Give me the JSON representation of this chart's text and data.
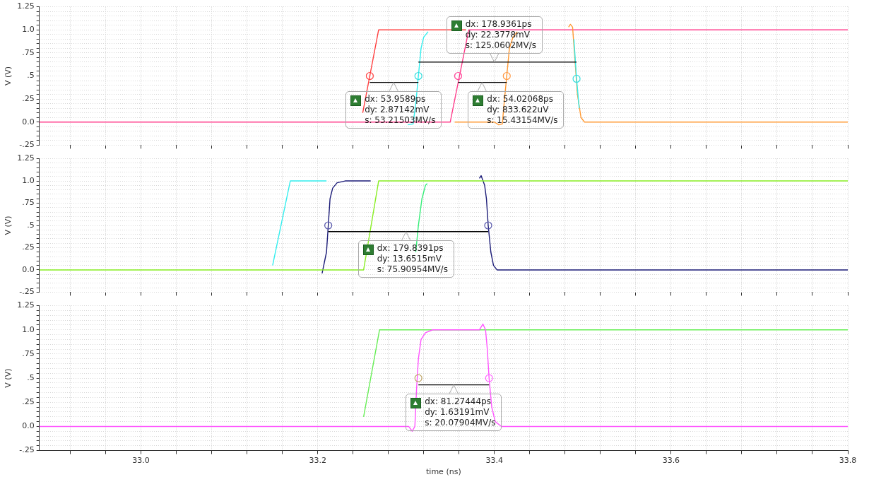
{
  "chart_data": [
    {
      "type": "line",
      "ylabel": "V (V)",
      "xlim": [
        32.885,
        33.8
      ],
      "ylim": [
        -0.25,
        1.25
      ],
      "tick_labels": "y",
      "grid": true,
      "xticks": [
        {
          "value": 32.92,
          "label": null
        },
        {
          "value": 32.96,
          "label": null
        },
        {
          "value": 33.0,
          "label": null
        },
        {
          "value": 33.04,
          "label": null
        },
        {
          "value": 33.08,
          "label": null
        },
        {
          "value": 33.12,
          "label": null
        },
        {
          "value": 33.16,
          "label": null
        },
        {
          "value": 33.2,
          "label": null
        },
        {
          "value": 33.24,
          "label": null
        },
        {
          "value": 33.28,
          "label": null
        },
        {
          "value": 33.32,
          "label": null
        },
        {
          "value": 33.36,
          "label": null
        },
        {
          "value": 33.4,
          "label": null
        },
        {
          "value": 33.44,
          "label": null
        },
        {
          "value": 33.48,
          "label": null
        },
        {
          "value": 33.52,
          "label": null
        },
        {
          "value": 33.56,
          "label": null
        },
        {
          "value": 33.6,
          "label": null
        },
        {
          "value": 33.64,
          "label": null
        },
        {
          "value": 33.68,
          "label": null
        },
        {
          "value": 33.72,
          "label": null
        },
        {
          "value": 33.76,
          "label": null
        },
        {
          "value": 33.8,
          "label": null
        }
      ],
      "yticks": [
        {
          "value": -0.25,
          "label": "-.25"
        },
        {
          "value": -0.2,
          "label": null
        },
        {
          "value": -0.15,
          "label": null
        },
        {
          "value": -0.1,
          "label": null
        },
        {
          "value": -0.05,
          "label": null
        },
        {
          "value": 0,
          "label": "0.0"
        },
        {
          "value": 0.05,
          "label": null
        },
        {
          "value": 0.1,
          "label": null
        },
        {
          "value": 0.15,
          "label": null
        },
        {
          "value": 0.2,
          "label": null
        },
        {
          "value": 0.25,
          "label": ".25"
        },
        {
          "value": 0.3,
          "label": null
        },
        {
          "value": 0.35,
          "label": null
        },
        {
          "value": 0.4,
          "label": null
        },
        {
          "value": 0.45,
          "label": null
        },
        {
          "value": 0.5,
          "label": ".5"
        },
        {
          "value": 0.55,
          "label": null
        },
        {
          "value": 0.6,
          "label": null
        },
        {
          "value": 0.65,
          "label": null
        },
        {
          "value": 0.7,
          "label": null
        },
        {
          "value": 0.75,
          "label": ".75"
        },
        {
          "value": 0.8,
          "label": null
        },
        {
          "value": 0.85,
          "label": null
        },
        {
          "value": 0.9,
          "label": null
        },
        {
          "value": 0.95,
          "label": null
        },
        {
          "value": 1,
          "label": "1.0"
        },
        {
          "value": 1.05,
          "label": null
        },
        {
          "value": 1.1,
          "label": null
        },
        {
          "value": 1.15,
          "label": null
        },
        {
          "value": 1.2,
          "label": null
        },
        {
          "value": 1.25,
          "label": "1.25"
        }
      ],
      "series": [
        {
          "type": "line",
          "color": "#ff4040",
          "x": [
            33.251,
            33.269,
            33.368
          ],
          "values": [
            0.1,
            1,
            1
          ]
        },
        {
          "type": "line",
          "color": "#ff3d8b",
          "x": [
            32.885,
            33.35,
            33.371,
            33.8
          ],
          "values": [
            0,
            0,
            1,
            1
          ]
        },
        {
          "type": "line",
          "color": "#ff9933",
          "x": [
            33.355,
            33.4,
            33.405,
            33.409,
            33.411,
            33.414,
            33.417,
            33.421,
            33.426,
            33.45,
            33.484,
            33.486,
            33.4885,
            33.491,
            33.494,
            33.498,
            33.502,
            33.8
          ],
          "values": [
            0,
            0,
            -0.03,
            -0.02,
            0.2,
            0.5,
            0.8,
            0.92,
            0.98,
            null,
            1.03,
            1.06,
            1.03,
            0.7,
            0.3,
            0.05,
            0,
            0
          ]
        },
        {
          "type": "line",
          "color": "#33eeee",
          "x": [
            33.302,
            33.308,
            33.311,
            33.314,
            33.317,
            33.32,
            33.325,
            33.4,
            33.49,
            33.493,
            33.496
          ],
          "values": [
            -0.03,
            -0.02,
            0.2,
            0.5,
            0.8,
            0.92,
            0.98,
            null,
            0.9,
            0.47,
            0.15
          ]
        },
        {
          "type": "line",
          "color": "#000000",
          "x": [
            33.259,
            33.314
          ],
          "values": [
            0.43,
            0.43
          ]
        },
        {
          "type": "line",
          "color": "#000000",
          "x": [
            33.359,
            33.414
          ],
          "values": [
            0.43,
            0.43
          ]
        },
        {
          "type": "line",
          "color": "#000000",
          "x": [
            33.314,
            33.493
          ],
          "values": [
            0.65,
            0.65
          ]
        },
        {
          "type": "scatter",
          "marker": "circle",
          "colors": [
            "#ff4444",
            "#33dddd",
            "#ff4499",
            "#ff9944",
            "#33dddd"
          ],
          "x": [
            33.259,
            33.314,
            33.359,
            33.414,
            33.493
          ],
          "values": [
            0.5,
            0.5,
            0.5,
            0.5,
            0.47
          ]
        }
      ],
      "annotations": [
        {
          "text": "dx: 53.9589ps\ndy: 2.87142mV\ns: 53.21503MV/s",
          "x": 33.286,
          "y": 0.43
        },
        {
          "text": "dx: 54.02068ps\ndy: 833.622uV\ns: 15.43154MV/s",
          "x": 33.386,
          "y": 0.43
        },
        {
          "text": "dx: 178.9361ps\ndy: 22.3778mV\ns: 125.0602MV/s",
          "x": 33.4,
          "y": 0.65
        }
      ]
    },
    {
      "type": "line",
      "ylabel": "V (V)",
      "xlim": [
        32.885,
        33.8
      ],
      "ylim": [
        -0.25,
        1.25
      ],
      "tick_labels": "y",
      "grid": true,
      "xticks": [
        {
          "value": 32.92,
          "label": null
        },
        {
          "value": 32.96,
          "label": null
        },
        {
          "value": 33.0,
          "label": null
        },
        {
          "value": 33.04,
          "label": null
        },
        {
          "value": 33.08,
          "label": null
        },
        {
          "value": 33.12,
          "label": null
        },
        {
          "value": 33.16,
          "label": null
        },
        {
          "value": 33.2,
          "label": null
        },
        {
          "value": 33.24,
          "label": null
        },
        {
          "value": 33.28,
          "label": null
        },
        {
          "value": 33.32,
          "label": null
        },
        {
          "value": 33.36,
          "label": null
        },
        {
          "value": 33.4,
          "label": null
        },
        {
          "value": 33.44,
          "label": null
        },
        {
          "value": 33.48,
          "label": null
        },
        {
          "value": 33.52,
          "label": null
        },
        {
          "value": 33.56,
          "label": null
        },
        {
          "value": 33.6,
          "label": null
        },
        {
          "value": 33.64,
          "label": null
        },
        {
          "value": 33.68,
          "label": null
        },
        {
          "value": 33.72,
          "label": null
        },
        {
          "value": 33.76,
          "label": null
        },
        {
          "value": 33.8,
          "label": null
        }
      ],
      "yticks": [
        {
          "value": -0.25,
          "label": "-.25"
        },
        {
          "value": -0.2,
          "label": null
        },
        {
          "value": -0.15,
          "label": null
        },
        {
          "value": -0.1,
          "label": null
        },
        {
          "value": -0.05,
          "label": null
        },
        {
          "value": 0,
          "label": "0.0"
        },
        {
          "value": 0.05,
          "label": null
        },
        {
          "value": 0.1,
          "label": null
        },
        {
          "value": 0.15,
          "label": null
        },
        {
          "value": 0.2,
          "label": null
        },
        {
          "value": 0.25,
          "label": ".25"
        },
        {
          "value": 0.3,
          "label": null
        },
        {
          "value": 0.35,
          "label": null
        },
        {
          "value": 0.4,
          "label": null
        },
        {
          "value": 0.45,
          "label": null
        },
        {
          "value": 0.5,
          "label": ".5"
        },
        {
          "value": 0.55,
          "label": null
        },
        {
          "value": 0.6,
          "label": null
        },
        {
          "value": 0.65,
          "label": null
        },
        {
          "value": 0.7,
          "label": null
        },
        {
          "value": 0.75,
          "label": ".75"
        },
        {
          "value": 0.8,
          "label": null
        },
        {
          "value": 0.85,
          "label": null
        },
        {
          "value": 0.9,
          "label": null
        },
        {
          "value": 0.95,
          "label": null
        },
        {
          "value": 1,
          "label": "1.0"
        },
        {
          "value": 1.05,
          "label": null
        },
        {
          "value": 1.1,
          "label": null
        },
        {
          "value": 1.15,
          "label": null
        },
        {
          "value": 1.2,
          "label": null
        },
        {
          "value": 1.25,
          "label": "1.25"
        }
      ],
      "series": [
        {
          "type": "line",
          "color": "#33eeee",
          "x": [
            33.149,
            33.169,
            33.21
          ],
          "values": [
            0.05,
            1,
            1
          ]
        },
        {
          "type": "line",
          "color": "#1c1c78",
          "x": [
            33.205,
            33.21,
            33.212,
            33.214,
            33.217,
            33.222,
            33.231,
            33.26,
            33.3,
            33.383,
            33.385,
            33.389,
            33.391,
            33.393,
            33.396,
            33.399,
            33.403,
            33.8
          ],
          "values": [
            -0.04,
            0.2,
            0.5,
            0.8,
            0.92,
            0.98,
            1,
            1,
            null,
            1.03,
            1.06,
            0.95,
            0.8,
            0.5,
            0.2,
            0.05,
            0,
            0
          ]
        },
        {
          "type": "line",
          "color": "#33ee77",
          "x": [
            33.311,
            33.314,
            33.318,
            33.322,
            33.324
          ],
          "values": [
            0.2,
            0.5,
            0.8,
            0.95,
            0.97
          ]
        },
        {
          "type": "line",
          "color": "#88ee22",
          "x": [
            32.885,
            33.252,
            33.269,
            33.8
          ],
          "values": [
            0,
            0,
            1,
            1
          ]
        },
        {
          "type": "line",
          "color": "#000000",
          "x": [
            33.212,
            33.393
          ],
          "values": [
            0.43,
            0.43
          ]
        },
        {
          "type": "scatter",
          "marker": "circle",
          "colors": [
            "#5555aa",
            "#5555aa"
          ],
          "x": [
            33.212,
            33.393
          ],
          "values": [
            0.5,
            0.5
          ]
        }
      ],
      "annotations": [
        {
          "text": "dx: 179.8391ps\ndy: 13.6515mV\ns: 75.90954MV/s",
          "x": 33.3,
          "y": 0.43
        }
      ]
    },
    {
      "type": "line",
      "xlabel": "time (ns)",
      "ylabel": "V (V)",
      "xlim": [
        32.885,
        33.8
      ],
      "ylim": [
        -0.25,
        1.25
      ],
      "grid": true,
      "xticks": [
        {
          "value": 32.92,
          "label": null
        },
        {
          "value": 32.96,
          "label": null
        },
        {
          "value": 33.0,
          "label": "33.0"
        },
        {
          "value": 33.04,
          "label": null
        },
        {
          "value": 33.08,
          "label": null
        },
        {
          "value": 33.12,
          "label": null
        },
        {
          "value": 33.16,
          "label": null
        },
        {
          "value": 33.2,
          "label": "33.2"
        },
        {
          "value": 33.24,
          "label": null
        },
        {
          "value": 33.28,
          "label": null
        },
        {
          "value": 33.32,
          "label": null
        },
        {
          "value": 33.36,
          "label": null
        },
        {
          "value": 33.4,
          "label": "33.4"
        },
        {
          "value": 33.44,
          "label": null
        },
        {
          "value": 33.48,
          "label": null
        },
        {
          "value": 33.52,
          "label": null
        },
        {
          "value": 33.56,
          "label": null
        },
        {
          "value": 33.6,
          "label": "33.6"
        },
        {
          "value": 33.64,
          "label": null
        },
        {
          "value": 33.68,
          "label": null
        },
        {
          "value": 33.72,
          "label": null
        },
        {
          "value": 33.76,
          "label": null
        },
        {
          "value": 33.8,
          "label": "33.8"
        }
      ],
      "yticks": [
        {
          "value": -0.25,
          "label": "-.25"
        },
        {
          "value": -0.2,
          "label": null
        },
        {
          "value": -0.15,
          "label": null
        },
        {
          "value": -0.1,
          "label": null
        },
        {
          "value": -0.05,
          "label": null
        },
        {
          "value": 0,
          "label": "0.0"
        },
        {
          "value": 0.05,
          "label": null
        },
        {
          "value": 0.1,
          "label": null
        },
        {
          "value": 0.15,
          "label": null
        },
        {
          "value": 0.2,
          "label": null
        },
        {
          "value": 0.25,
          "label": ".25"
        },
        {
          "value": 0.3,
          "label": null
        },
        {
          "value": 0.35,
          "label": null
        },
        {
          "value": 0.4,
          "label": null
        },
        {
          "value": 0.45,
          "label": null
        },
        {
          "value": 0.5,
          "label": ".5"
        },
        {
          "value": 0.55,
          "label": null
        },
        {
          "value": 0.6,
          "label": null
        },
        {
          "value": 0.65,
          "label": null
        },
        {
          "value": 0.7,
          "label": null
        },
        {
          "value": 0.75,
          "label": ".75"
        },
        {
          "value": 0.8,
          "label": null
        },
        {
          "value": 0.85,
          "label": null
        },
        {
          "value": 0.9,
          "label": null
        },
        {
          "value": 0.95,
          "label": null
        },
        {
          "value": 1,
          "label": "1.0"
        },
        {
          "value": 1.05,
          "label": null
        },
        {
          "value": 1.1,
          "label": null
        },
        {
          "value": 1.15,
          "label": null
        },
        {
          "value": 1.2,
          "label": null
        },
        {
          "value": 1.25,
          "label": "1.25"
        }
      ],
      "series": [
        {
          "type": "line",
          "color": "#66ee55",
          "x": [
            33.252,
            33.27,
            33.8
          ],
          "values": [
            0.1,
            1,
            1
          ]
        },
        {
          "type": "line",
          "color": "#ff55ff",
          "x": [
            32.885,
            33.303,
            33.307,
            33.31,
            33.312,
            33.314,
            33.317,
            33.322,
            33.33,
            33.383,
            33.387,
            33.39,
            33.392,
            33.394,
            33.397,
            33.401,
            33.408,
            33.8
          ],
          "values": [
            0,
            0,
            -0.05,
            0,
            0.4,
            0.7,
            0.9,
            0.97,
            1,
            1,
            1.06,
            1,
            0.8,
            0.5,
            0.2,
            0.05,
            0,
            0
          ]
        },
        {
          "type": "line",
          "color": "#000000",
          "x": [
            33.314,
            33.394
          ],
          "values": [
            0.43,
            0.43
          ]
        },
        {
          "type": "scatter",
          "marker": "circle",
          "colors": [
            "#bba060",
            "#ff66ff"
          ],
          "x": [
            33.314,
            33.394
          ],
          "values": [
            0.5,
            0.5
          ]
        }
      ],
      "annotations": [
        {
          "text": "dx: 81.27444ps\ndy: 1.63191mV\ns: 20.07904MV/s",
          "x": 33.354,
          "y": 0.43
        }
      ]
    }
  ]
}
